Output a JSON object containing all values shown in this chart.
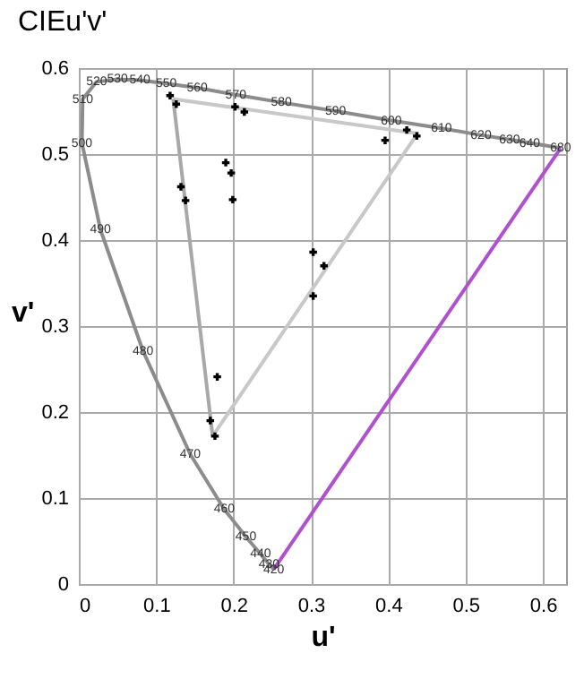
{
  "chart_data": {
    "type": "line",
    "title": "CIEu'v'",
    "xlabel": "u'",
    "ylabel": "v'",
    "xlim": [
      0,
      0.63
    ],
    "ylim": [
      0,
      0.6
    ],
    "xticks": [
      0,
      0.1,
      0.2,
      0.3,
      0.4,
      0.5,
      0.6
    ],
    "yticks": [
      0,
      0.1,
      0.2,
      0.3,
      0.4,
      0.5,
      0.6
    ],
    "grid": true,
    "series": [
      {
        "color": "#8c8c8c",
        "marker": "none",
        "x": [
          0.252,
          0.246,
          0.235,
          0.216,
          0.188,
          0.144,
          0.083,
          0.028,
          0.004,
          0.005,
          0.023,
          0.05,
          0.079,
          0.113,
          0.153,
          0.203,
          0.262,
          0.332,
          0.404,
          0.469,
          0.52,
          0.557,
          0.583,
          0.623
        ],
        "values": [
          0.017,
          0.023,
          0.035,
          0.055,
          0.087,
          0.151,
          0.271,
          0.412,
          0.513,
          0.564,
          0.584,
          0.587,
          0.586,
          0.582,
          0.577,
          0.569,
          0.56,
          0.55,
          0.539,
          0.53,
          0.522,
          0.517,
          0.513,
          0.507
        ]
      },
      {
        "color": "#b050d0",
        "marker": "none",
        "x": [
          0.252,
          0.623
        ],
        "values": [
          0.017,
          0.507
        ]
      },
      {
        "color": "#c8c8c8",
        "marker": "none",
        "x": [
          0.122,
          0.438,
          0.173
        ],
        "values": [
          0.564,
          0.524,
          0.172
        ]
      },
      {
        "color": "#a8a8a8",
        "marker": "none",
        "x": [
          0.173,
          0.122
        ],
        "values": [
          0.172,
          0.564
        ]
      },
      {
        "type": "scatter",
        "color": "#000000",
        "marker": "cross",
        "x": [
          0.118,
          0.126,
          0.202,
          0.214,
          0.19,
          0.197,
          0.199,
          0.132,
          0.138,
          0.424,
          0.437,
          0.396,
          0.303,
          0.317,
          0.303,
          0.179,
          0.17,
          0.176
        ],
        "values": [
          0.568,
          0.558,
          0.555,
          0.549,
          0.49,
          0.478,
          0.447,
          0.462,
          0.446,
          0.528,
          0.521,
          0.516,
          0.386,
          0.37,
          0.335,
          0.241,
          0.19,
          0.172
        ]
      }
    ],
    "annotations": [
      {
        "text": "420",
        "x": 0.252,
        "y": 0.017
      },
      {
        "text": "430",
        "x": 0.246,
        "y": 0.023
      },
      {
        "text": "440",
        "x": 0.235,
        "y": 0.035
      },
      {
        "text": "450",
        "x": 0.216,
        "y": 0.055
      },
      {
        "text": "460",
        "x": 0.188,
        "y": 0.087
      },
      {
        "text": "470",
        "x": 0.144,
        "y": 0.151
      },
      {
        "text": "480",
        "x": 0.083,
        "y": 0.271
      },
      {
        "text": "490",
        "x": 0.028,
        "y": 0.412
      },
      {
        "text": "500",
        "x": 0.004,
        "y": 0.513
      },
      {
        "text": "510",
        "x": 0.005,
        "y": 0.564
      },
      {
        "text": "520",
        "x": 0.023,
        "y": 0.584
      },
      {
        "text": "530",
        "x": 0.05,
        "y": 0.587
      },
      {
        "text": "540",
        "x": 0.079,
        "y": 0.586
      },
      {
        "text": "550",
        "x": 0.113,
        "y": 0.582
      },
      {
        "text": "560",
        "x": 0.153,
        "y": 0.577
      },
      {
        "text": "570",
        "x": 0.203,
        "y": 0.569
      },
      {
        "text": "580",
        "x": 0.262,
        "y": 0.56
      },
      {
        "text": "590",
        "x": 0.332,
        "y": 0.55
      },
      {
        "text": "600",
        "x": 0.404,
        "y": 0.539
      },
      {
        "text": "610",
        "x": 0.469,
        "y": 0.53
      },
      {
        "text": "620",
        "x": 0.52,
        "y": 0.522
      },
      {
        "text": "630",
        "x": 0.557,
        "y": 0.517
      },
      {
        "text": "640",
        "x": 0.583,
        "y": 0.513
      },
      {
        "text": "680",
        "x": 0.623,
        "y": 0.507
      }
    ]
  }
}
